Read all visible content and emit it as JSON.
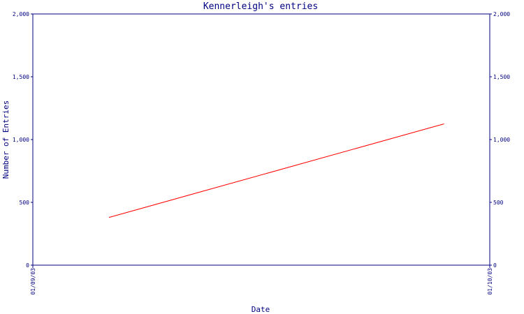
{
  "chart_data": {
    "type": "line",
    "title": "Kennerleigh's entries",
    "xlabel": "Date",
    "ylabel": "Number of Entries",
    "x_ticks": [
      "01/09/03",
      "01/10/03"
    ],
    "y_ticks": [
      "0",
      "500",
      "1,000",
      "1,500",
      "2,000"
    ],
    "y_ticks_right": [
      "0",
      "500",
      "1,000",
      "1,500",
      "2,000"
    ],
    "ylim": [
      0,
      2000
    ],
    "grid": false,
    "series": [
      {
        "color": "#ff0000",
        "x": [
          "2003-09-06",
          "2003-09-28"
        ],
        "values": [
          380,
          1125
        ]
      }
    ]
  },
  "colors": {
    "axis": "#000080",
    "series": "#ff0000",
    "background": "#ffffff"
  }
}
